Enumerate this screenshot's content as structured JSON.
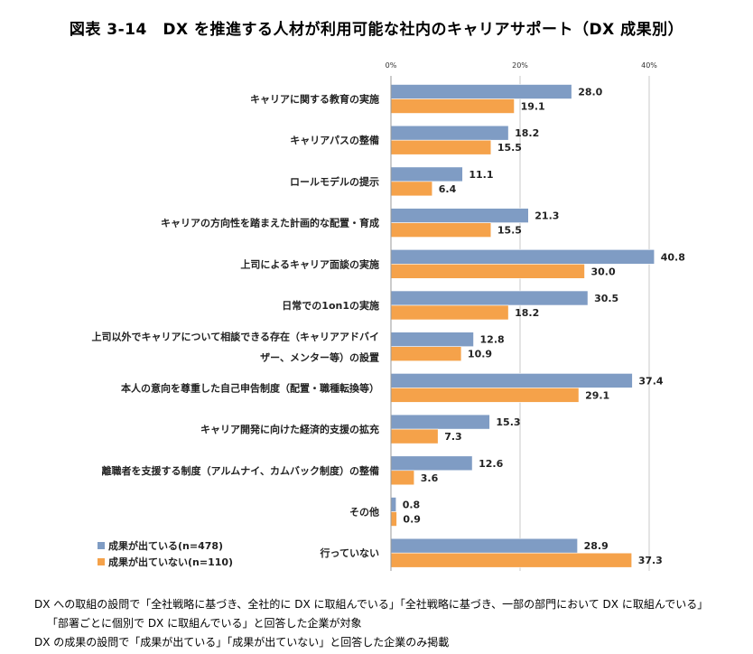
{
  "chart_data": {
    "type": "bar",
    "orientation": "horizontal",
    "title": "図表 3-14　DX を推進する人材が利用可能な社内のキャリアサポート（DX 成果別）",
    "xlabel": "",
    "ylabel": "",
    "xlim": [
      0,
      40
    ],
    "ticks": [
      {
        "value": 0,
        "label": "0%"
      },
      {
        "value": 20,
        "label": "20%"
      },
      {
        "value": 40,
        "label": "40%"
      }
    ],
    "grid": true,
    "categories": [
      {
        "lines": [
          "キャリアに関する教育の実施"
        ]
      },
      {
        "lines": [
          "キャリアパスの整備"
        ]
      },
      {
        "lines": [
          "ロールモデルの提示"
        ]
      },
      {
        "lines": [
          "キャリアの方向性を踏まえた計画的な配置・育成"
        ]
      },
      {
        "lines": [
          "上司によるキャリア面談の実施"
        ]
      },
      {
        "lines": [
          "日常での1on1の実施"
        ]
      },
      {
        "lines": [
          "上司以外でキャリアについて相談できる存在（キャリアアドバイ",
          "ザー、メンター等）の設置"
        ]
      },
      {
        "lines": [
          "本人の意向を尊重した自己申告制度（配置・職種転換等）"
        ]
      },
      {
        "lines": [
          "キャリア開発に向けた経済的支援の拡充"
        ]
      },
      {
        "lines": [
          "離職者を支援する制度（アルムナイ、カムバック制度）の整備"
        ]
      },
      {
        "lines": [
          "その他"
        ]
      },
      {
        "lines": [
          "行っていない"
        ]
      }
    ],
    "series": [
      {
        "name": "成果が出ている(n=478)",
        "color": "#7f9cc4",
        "values": [
          28.0,
          18.2,
          11.1,
          21.3,
          40.8,
          30.5,
          12.8,
          37.4,
          15.3,
          12.6,
          0.8,
          28.9
        ],
        "labels": [
          "28.0",
          "18.2",
          "11.1",
          "21.3",
          "40.8",
          "30.5",
          "12.8",
          "37.4",
          "15.3",
          "12.6",
          "0.8",
          "28.9"
        ]
      },
      {
        "name": "成果が出ていない(n=110)",
        "color": "#f5a24a",
        "values": [
          19.1,
          15.5,
          6.4,
          15.5,
          30.0,
          18.2,
          10.9,
          29.1,
          7.3,
          3.6,
          0.9,
          37.3
        ],
        "labels": [
          "19.1",
          "15.5",
          "6.4",
          "15.5",
          "30.0",
          "18.2",
          "10.9",
          "29.1",
          "7.3",
          "3.6",
          "0.9",
          "37.3"
        ]
      }
    ],
    "legend_position": "bottom-left"
  },
  "notes": [
    "DX への取組の設問で「全社戦略に基づき、全社的に DX に取組んでいる」「全社戦略に基づき、一部の部門において DX に取組んでいる」",
    "「部署ごとに個別で DX に取組んでいる」と回答した企業が対象",
    "DX の成果の設問で「成果が出ている」「成果が出ていない」と回答した企業のみ掲載"
  ]
}
